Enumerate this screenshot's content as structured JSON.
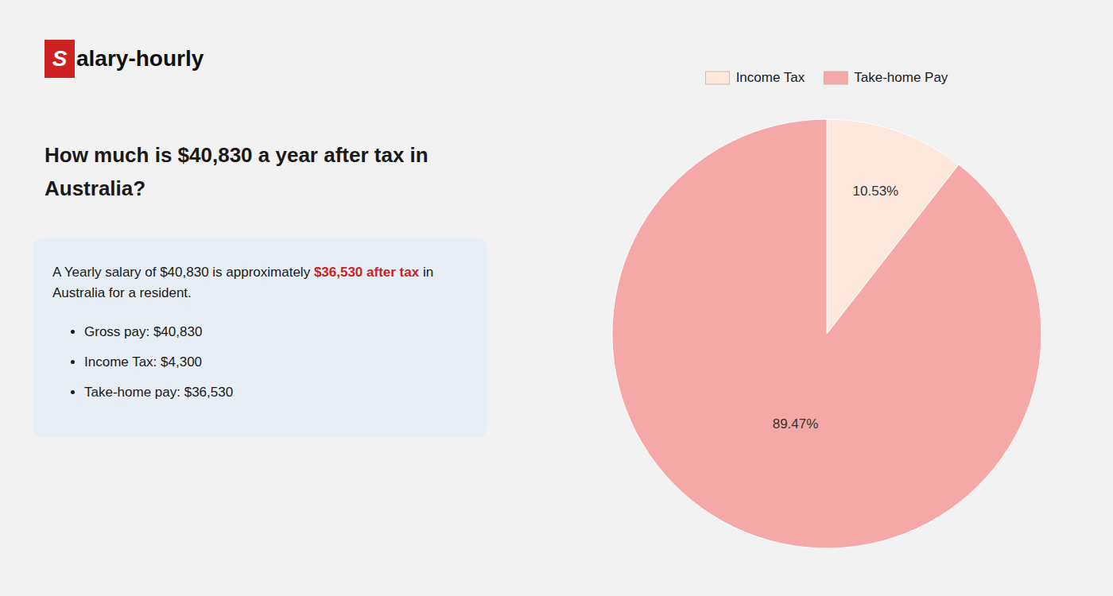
{
  "chart_data": {
    "type": "pie",
    "title": "How much is $40,830 a year after tax in Australia?",
    "categories": [
      "Income Tax",
      "Take-home Pay"
    ],
    "values": [
      10.53,
      89.47
    ],
    "value_labels": [
      "10.53%",
      "89.47%"
    ],
    "colors": [
      "#fce8dc",
      "#f4a8a8"
    ],
    "data_labels": true,
    "legend": "top",
    "annotations": [
      "S",
      "alary-hourly",
      "A Yearly salary of $40,830 is approximately ",
      "$36,530 after tax",
      " in",
      "Australia for a resident.",
      "Gross pay: $40,830",
      "Income Tax: $4,300",
      "Take-home pay: $36,530"
    ]
  }
}
